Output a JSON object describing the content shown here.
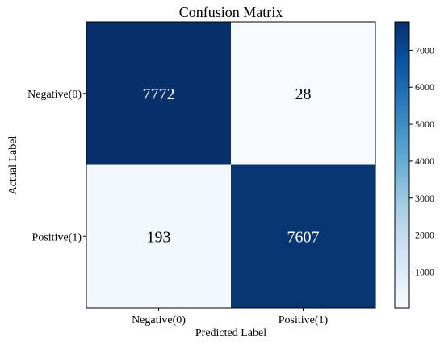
{
  "chart_data": {
    "type": "heatmap",
    "title": "Confusion Matrix",
    "xlabel": "Predicted Label",
    "ylabel": "Actual Label",
    "x_categories": [
      "Negative(0)",
      "Positive(1)"
    ],
    "y_categories": [
      "Negative(0)",
      "Positive(1)"
    ],
    "values": [
      [
        7772,
        28
      ],
      [
        193,
        7607
      ]
    ],
    "colorbar": {
      "vmin": 28,
      "vmax": 7772,
      "ticks": [
        1000,
        2000,
        3000,
        4000,
        5000,
        6000,
        7000
      ],
      "colormap": "Blues"
    },
    "colors": {
      "low": "#f7fbff",
      "high": "#08306b"
    },
    "grid": false
  }
}
